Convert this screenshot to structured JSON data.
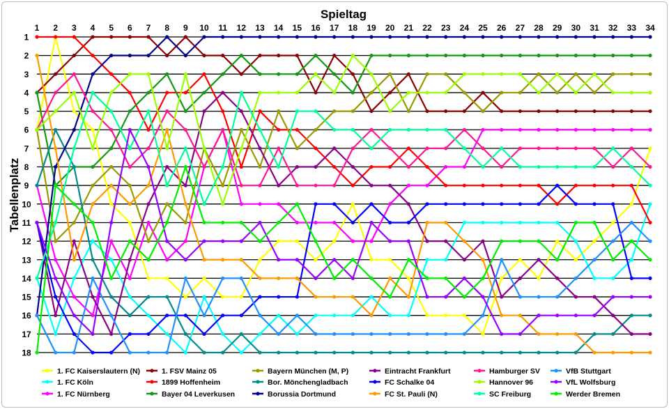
{
  "chart_data": {
    "type": "line",
    "title": "Spieltag",
    "xlabel": "Spieltag",
    "ylabel": "Tabellenplatz",
    "x": [
      1,
      2,
      3,
      4,
      5,
      6,
      7,
      8,
      9,
      10,
      11,
      12,
      13,
      14,
      15,
      16,
      17,
      18,
      19,
      20,
      21,
      22,
      23,
      24,
      25,
      26,
      27,
      28,
      29,
      30,
      31,
      32,
      33,
      34
    ],
    "xlim": [
      1,
      34
    ],
    "ylim": [
      18,
      1
    ],
    "y_ticks": [
      1,
      2,
      3,
      4,
      5,
      6,
      7,
      8,
      9,
      10,
      11,
      12,
      13,
      14,
      15,
      16,
      17,
      18
    ],
    "grid": "horizontal",
    "legend_position": "bottom",
    "series": [
      {
        "name": "1. FC Kaiserslautern (N)",
        "color": "#ffff00",
        "values": [
          6,
          1,
          5,
          6,
          10,
          11,
          14,
          14,
          15,
          14,
          15,
          15,
          13,
          12,
          12,
          13,
          12,
          10,
          13,
          13,
          14,
          16,
          16,
          16,
          17,
          14,
          13,
          14,
          12,
          13,
          12,
          11,
          10,
          7
        ]
      },
      {
        "name": "1. FC Köln",
        "color": "#00ffff",
        "values": [
          14,
          17,
          14,
          12,
          13,
          15,
          16,
          17,
          18,
          15,
          17,
          18,
          17,
          16,
          17,
          16,
          16,
          16,
          15,
          16,
          16,
          13,
          13,
          11,
          11,
          11,
          11,
          11,
          11,
          12,
          14,
          14,
          13,
          10
        ]
      },
      {
        "name": "1. FC Nürnberg",
        "color": "#ff00ff",
        "values": [
          9,
          13,
          15,
          16,
          12,
          14,
          11,
          13,
          12,
          8,
          6,
          10,
          10,
          10,
          11,
          11,
          11,
          12,
          12,
          10,
          9,
          9,
          8,
          8,
          6,
          6,
          6,
          6,
          6,
          6,
          6,
          6,
          6,
          6
        ]
      },
      {
        "name": "1. FSV Mainz 05",
        "color": "#8b0000",
        "values": [
          4,
          3,
          2,
          1,
          1,
          1,
          1,
          2,
          1,
          2,
          2,
          3,
          2,
          2,
          2,
          4,
          2,
          3,
          5,
          4,
          3,
          5,
          5,
          5,
          4,
          5,
          5,
          5,
          5,
          5,
          5,
          5,
          5,
          5
        ]
      },
      {
        "name": "1899 Hoffenheim",
        "color": "#ff0000",
        "values": [
          1,
          1,
          1,
          2,
          3,
          4,
          6,
          4,
          4,
          3,
          5,
          8,
          5,
          6,
          6,
          7,
          8,
          9,
          8,
          8,
          7,
          8,
          9,
          9,
          9,
          9,
          9,
          9,
          10,
          9,
          9,
          9,
          9,
          11
        ]
      },
      {
        "name": "Bayer 04 Leverkusen",
        "color": "#119911",
        "values": [
          4,
          9,
          8,
          8,
          7,
          5,
          4,
          3,
          5,
          4,
          3,
          2,
          3,
          3,
          3,
          2,
          3,
          4,
          2,
          2,
          2,
          2,
          2,
          2,
          2,
          2,
          2,
          2,
          2,
          2,
          2,
          2,
          2,
          2
        ]
      },
      {
        "name": "Bayern München (M, P)",
        "color": "#999900",
        "values": [
          6,
          12,
          11,
          9,
          8,
          9,
          12,
          10,
          11,
          7,
          9,
          6,
          8,
          5,
          7,
          6,
          5,
          5,
          4,
          3,
          5,
          3,
          3,
          4,
          5,
          4,
          4,
          3,
          4,
          3,
          4,
          3,
          3,
          3
        ]
      },
      {
        "name": "Bor. Mönchengladbach",
        "color": "#008b8b",
        "values": [
          9,
          6,
          8,
          13,
          15,
          16,
          15,
          15,
          17,
          18,
          18,
          17,
          18,
          18,
          18,
          18,
          18,
          18,
          18,
          18,
          18,
          18,
          18,
          18,
          18,
          18,
          18,
          18,
          18,
          18,
          17,
          17,
          16,
          16
        ]
      },
      {
        "name": "Borussia Dortmund",
        "color": "#00008b",
        "values": [
          16,
          8,
          6,
          3,
          2,
          2,
          2,
          1,
          2,
          1,
          1,
          1,
          1,
          1,
          1,
          1,
          1,
          1,
          1,
          1,
          1,
          1,
          1,
          1,
          1,
          1,
          1,
          1,
          1,
          1,
          1,
          1,
          1,
          1
        ]
      },
      {
        "name": "Eintracht Frankfurt",
        "color": "#8b008b",
        "values": [
          11,
          16,
          12,
          15,
          17,
          13,
          10,
          8,
          9,
          5,
          4,
          5,
          7,
          9,
          8,
          8,
          7,
          8,
          9,
          9,
          10,
          12,
          12,
          13,
          12,
          15,
          14,
          13,
          14,
          15,
          15,
          16,
          17,
          17
        ]
      },
      {
        "name": "FC Schalke 04",
        "color": "#0000ff",
        "values": [
          11,
          15,
          17,
          18,
          18,
          17,
          17,
          16,
          16,
          17,
          16,
          16,
          15,
          15,
          15,
          10,
          10,
          11,
          10,
          11,
          11,
          10,
          10,
          10,
          10,
          10,
          10,
          10,
          9,
          10,
          10,
          10,
          14,
          14
        ]
      },
      {
        "name": "FC St. Pauli (N)",
        "color": "#ff9900",
        "values": [
          2,
          7,
          13,
          10,
          9,
          10,
          9,
          6,
          10,
          13,
          13,
          13,
          14,
          14,
          14,
          15,
          15,
          15,
          16,
          14,
          15,
          11,
          11,
          12,
          13,
          16,
          16,
          17,
          17,
          17,
          18,
          18,
          18,
          18
        ]
      },
      {
        "name": "Hamburger SV",
        "color": "#ff1493",
        "values": [
          6,
          4,
          3,
          5,
          6,
          8,
          7,
          5,
          6,
          8,
          6,
          9,
          9,
          7,
          9,
          9,
          9,
          7,
          6,
          7,
          8,
          7,
          7,
          6,
          7,
          8,
          7,
          7,
          7,
          7,
          7,
          8,
          7,
          8
        ]
      },
      {
        "name": "Hannover 96",
        "color": "#99ff00",
        "values": [
          6,
          5,
          4,
          7,
          4,
          3,
          3,
          7,
          3,
          7,
          10,
          7,
          4,
          4,
          4,
          3,
          4,
          2,
          3,
          5,
          4,
          4,
          4,
          3,
          3,
          3,
          3,
          4,
          3,
          4,
          3,
          4,
          4,
          4
        ]
      },
      {
        "name": "SC Freiburg",
        "color": "#00ff99",
        "values": [
          14,
          11,
          7,
          4,
          5,
          7,
          5,
          9,
          7,
          10,
          8,
          4,
          6,
          8,
          5,
          5,
          6,
          6,
          7,
          6,
          6,
          6,
          6,
          7,
          8,
          7,
          8,
          8,
          8,
          8,
          8,
          7,
          8,
          9
        ]
      },
      {
        "name": "VfB Stuttgart",
        "color": "#1e90ff",
        "values": [
          16,
          18,
          18,
          14,
          16,
          18,
          18,
          18,
          14,
          16,
          14,
          14,
          16,
          17,
          16,
          17,
          17,
          17,
          17,
          17,
          17,
          17,
          17,
          17,
          16,
          13,
          15,
          15,
          15,
          14,
          13,
          12,
          11,
          12
        ]
      },
      {
        "name": "VfL Wolfsburg",
        "color": "#9900ff",
        "values": [
          11,
          14,
          16,
          17,
          11,
          6,
          8,
          12,
          13,
          12,
          12,
          12,
          11,
          13,
          13,
          14,
          13,
          14,
          11,
          12,
          12,
          15,
          15,
          14,
          15,
          17,
          17,
          16,
          16,
          16,
          16,
          15,
          15,
          15
        ]
      },
      {
        "name": "Werder Bremen",
        "color": "#00ee00",
        "values": [
          18,
          9,
          10,
          11,
          14,
          12,
          13,
          11,
          8,
          11,
          11,
          11,
          12,
          11,
          10,
          12,
          14,
          13,
          14,
          15,
          13,
          14,
          14,
          15,
          14,
          12,
          12,
          12,
          13,
          11,
          11,
          13,
          12,
          13
        ]
      }
    ]
  }
}
